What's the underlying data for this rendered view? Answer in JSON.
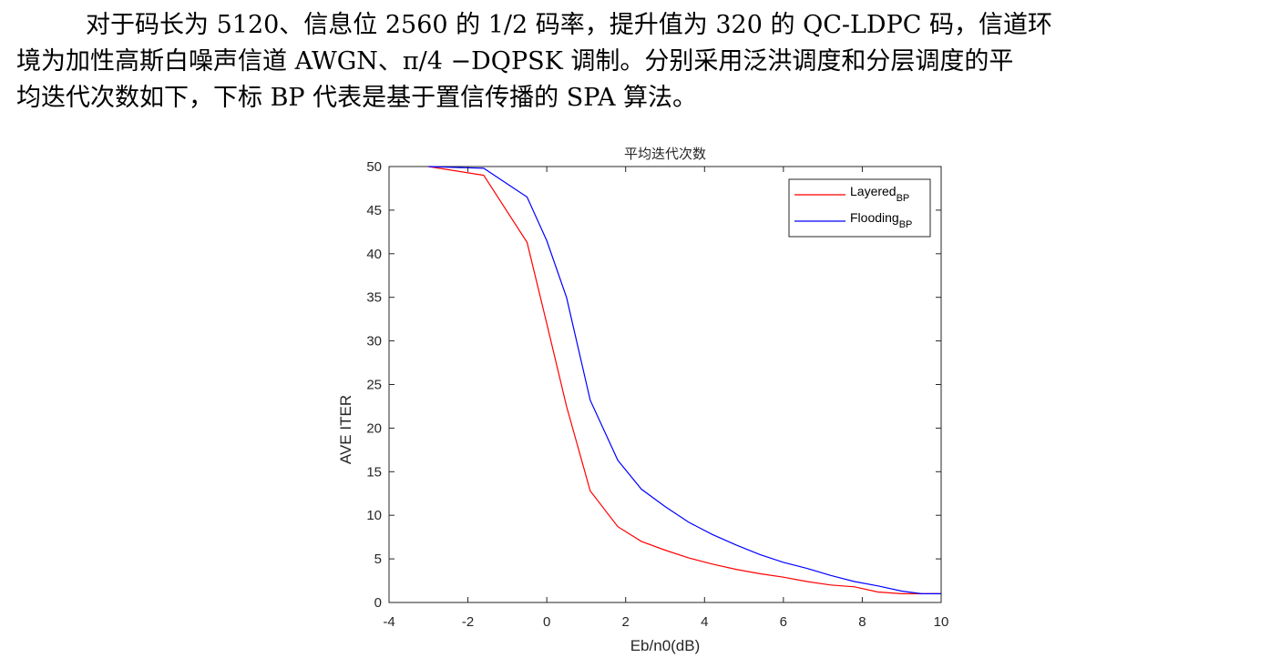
{
  "paragraph": {
    "line1": "对于码长为 5120、信息位 2560 的 1/2 码率，提升值为 320 的 QC-LDPC 码，信道环",
    "line2": "境为加性高斯白噪声信道 AWGN、π/4 −DQPSK 调制。分别采用泛洪调度和分层调度的平",
    "line3": "均迭代次数如下，下标 BP 代表是基于置信传播的 SPA 算法。"
  },
  "chart_data": {
    "type": "line",
    "title": "平均迭代次数",
    "xlabel": "Eb/n0(dB)",
    "ylabel": "AVE ITER",
    "xlim": [
      -4,
      10
    ],
    "ylim": [
      0,
      50
    ],
    "xticks": [
      "-4",
      "-2",
      "0",
      "2",
      "4",
      "6",
      "8",
      "10"
    ],
    "yticks": [
      "0",
      "5",
      "10",
      "15",
      "20",
      "25",
      "30",
      "35",
      "40",
      "45",
      "50"
    ],
    "grid": false,
    "legend_position": "top-right",
    "series": [
      {
        "name": "Layered",
        "subscript": "BP",
        "color": "#ff0000",
        "x": [
          -3.0,
          -1.6,
          -0.5,
          0.0,
          0.5,
          1.1,
          1.8,
          2.4,
          3.0,
          3.6,
          4.2,
          4.8,
          5.4,
          6.0,
          6.6,
          7.2,
          7.8,
          8.4,
          9.0,
          9.5,
          10.0
        ],
        "y": [
          50,
          49,
          41.3,
          32,
          22.5,
          12.8,
          8.7,
          7.0,
          6.0,
          5.1,
          4.4,
          3.8,
          3.3,
          2.9,
          2.4,
          2.0,
          1.8,
          1.2,
          1.0,
          1.0,
          1.0
        ]
      },
      {
        "name": "Flooding",
        "subscript": "BP",
        "color": "#0000ff",
        "x": [
          -3.0,
          -1.6,
          -0.5,
          0.0,
          0.5,
          1.1,
          1.8,
          2.4,
          3.0,
          3.6,
          4.2,
          4.8,
          5.4,
          6.0,
          6.6,
          7.2,
          7.8,
          8.4,
          9.0,
          9.5,
          10.0
        ],
        "y": [
          50,
          49.8,
          46.5,
          41.5,
          35.0,
          23.2,
          16.3,
          13.0,
          11.0,
          9.2,
          7.8,
          6.6,
          5.5,
          4.6,
          3.9,
          3.1,
          2.4,
          1.9,
          1.3,
          1.0,
          1.0
        ]
      }
    ]
  }
}
